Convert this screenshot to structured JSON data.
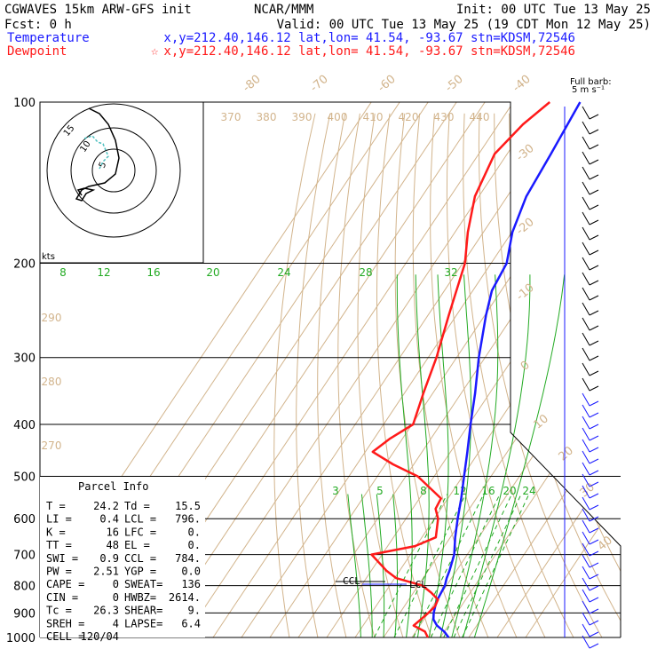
{
  "header": {
    "model": "CGWAVES 15km ARW-GFS init",
    "fcst": "Fcst:   0 h",
    "org": "NCAR/MMM",
    "init": "Init: 00 UTC Tue 13 May 25",
    "valid": "Valid: 00 UTC Tue 13 May 25 (19 CDT Mon 12 May 25)",
    "temp_label": "Temperature",
    "temp_loc": "x,y=212.40,146.12   lat,lon= 41.54, -93.67   stn=KDSM,72546",
    "dew_label": "Dewpoint",
    "dew_star": "☆",
    "dew_loc": "x,y=212.40,146.12   lat,lon= 41.54, -93.67   stn=KDSM,72546"
  },
  "barb_title": {
    "line1": "Full barb:",
    "line2": "5 m s⁻¹"
  },
  "hodo_units": "kts",
  "hodo_labels": [
    "5",
    "10",
    "15"
  ],
  "parcel": {
    "title": "Parcel Info",
    "rows": [
      [
        "T  =",
        "24.2",
        "Td =",
        "15.5"
      ],
      [
        "LI =",
        "0.4",
        "LCL =",
        "796."
      ],
      [
        "K  =",
        "16",
        "LFC =",
        "0."
      ],
      [
        "TT =",
        "48",
        "EL =",
        "0."
      ],
      [
        "SWI =",
        "0.9",
        "CCL =",
        "784."
      ],
      [
        "PW =",
        "2.51",
        "YGP =",
        "0.0"
      ],
      [
        "CAPE =",
        "0",
        "SWEAT=",
        "136"
      ],
      [
        "CIN =",
        "0",
        "HWBZ=",
        "2614."
      ],
      [
        "Tc =",
        "26.3",
        "SHEAR=",
        "9."
      ],
      [
        "SREH =",
        "4",
        "LAPSE=",
        "6.4"
      ],
      [
        "CELL =",
        "120/04",
        "",
        ""
      ]
    ]
  },
  "profile_labels": {
    "ccl": "CCL",
    "lcl": "LCL"
  },
  "mixing_ratio_labels": [
    "3",
    "5",
    "8",
    "12",
    "16",
    "20",
    "24"
  ],
  "colors": {
    "temperature": "#1a1aff",
    "dewpoint": "#ff1a1a",
    "isotherm": "#d2b48c",
    "moist": "#22aa22"
  },
  "chart_data": {
    "type": "line",
    "subtype": "skew-T log-P sounding",
    "y_axis": {
      "name": "pressure (hPa)",
      "scale": "log",
      "range": [
        1000,
        100
      ],
      "tick_labels": [
        "100",
        "200",
        "300",
        "400",
        "500",
        "600",
        "700",
        "800",
        "900",
        "1000"
      ]
    },
    "isotherm_labels": [
      "-80",
      "-70",
      "-60",
      "-50",
      "-40",
      "-30",
      "-20",
      "-10",
      "0",
      "10",
      "20",
      "30",
      "40"
    ],
    "theta_labels": [
      "370",
      "380",
      "390",
      "400",
      "410",
      "420",
      "430",
      "440"
    ],
    "theta_labels_left": [
      "290",
      "280",
      "270"
    ],
    "theta_e_labels": [
      "8",
      "12",
      "16",
      "20",
      "24",
      "28",
      "32"
    ],
    "series": [
      {
        "name": "Temperature",
        "points": [
          [
            1000,
            22.9
          ],
          [
            975,
            20
          ],
          [
            950,
            16
          ],
          [
            925,
            13.3
          ],
          [
            900,
            11.9
          ],
          [
            875,
            10.9
          ],
          [
            850,
            10.1
          ],
          [
            800,
            9.4
          ],
          [
            775,
            8.3
          ],
          [
            750,
            7.5
          ],
          [
            700,
            5.4
          ],
          [
            650,
            1.7
          ],
          [
            600,
            -1.8
          ],
          [
            550,
            -5.3
          ],
          [
            500,
            -9.5
          ],
          [
            450,
            -14.1
          ],
          [
            400,
            -19.4
          ],
          [
            350,
            -25.1
          ],
          [
            300,
            -32.2
          ],
          [
            250,
            -39.6
          ],
          [
            225,
            -43.3
          ],
          [
            200,
            -44.5
          ],
          [
            175,
            -49.8
          ],
          [
            150,
            -53.3
          ],
          [
            125,
            -54.6
          ],
          [
            100,
            -56.5
          ]
        ]
      },
      {
        "name": "Dewpoint",
        "points": [
          [
            1000,
            15.6
          ],
          [
            975,
            13.2
          ],
          [
            950,
            7.8
          ],
          [
            925,
            8.9
          ],
          [
            900,
            10
          ],
          [
            875,
            10.8
          ],
          [
            850,
            10.3
          ],
          [
            825,
            6.3
          ],
          [
            800,
            1.5
          ],
          [
            775,
            -9.4
          ],
          [
            750,
            -14.7
          ],
          [
            700,
            -23.7
          ],
          [
            675,
            -10.4
          ],
          [
            650,
            -5.1
          ],
          [
            600,
            -8.7
          ],
          [
            575,
            -11.9
          ],
          [
            550,
            -12.4
          ],
          [
            500,
            -25.8
          ],
          [
            475,
            -37.3
          ],
          [
            450,
            -47.4
          ],
          [
            425,
            -44.4
          ],
          [
            400,
            -39.6
          ],
          [
            350,
            -43.3
          ],
          [
            300,
            -47.1
          ],
          [
            250,
            -52.7
          ],
          [
            200,
            -59.2
          ],
          [
            175,
            -65.5
          ],
          [
            150,
            -71.4
          ],
          [
            125,
            -74.4
          ],
          [
            110,
            -71.4
          ],
          [
            100,
            -67.2
          ]
        ]
      }
    ]
  }
}
